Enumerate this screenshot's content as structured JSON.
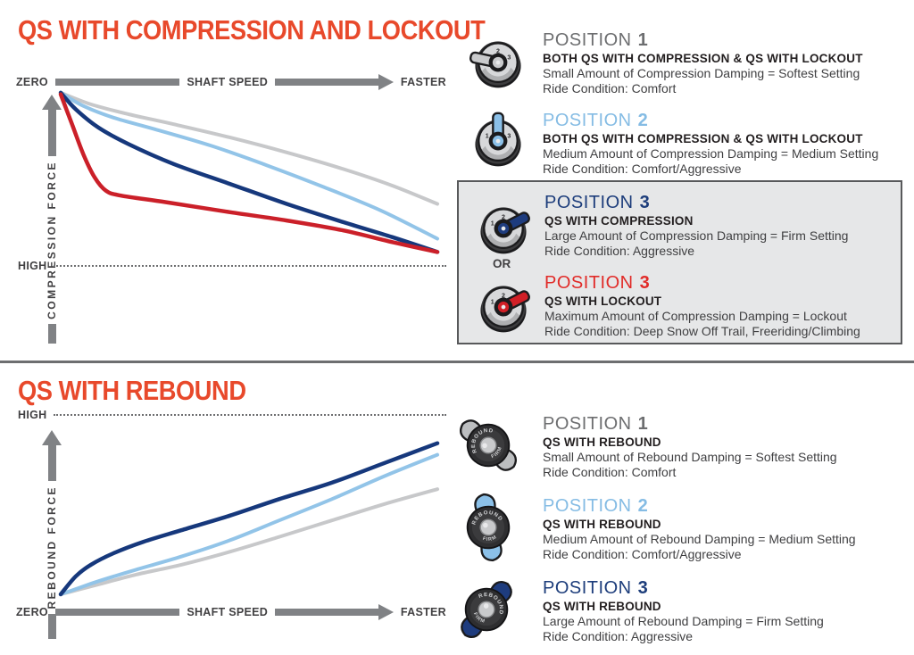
{
  "colors": {
    "title_orange": "#e8492b",
    "heading_gray": "#6d6e70",
    "heading_light_blue": "#85bce4",
    "heading_navy": "#1d3d7b",
    "heading_red": "#e12b28",
    "curve_gray": "#c7c8ca",
    "curve_light_blue": "#92c4e8",
    "curve_navy": "#16387c",
    "curve_red": "#cb2029",
    "lever_gray": "#c9cacc",
    "lever_light_blue": "#8bc0e8",
    "lever_navy": "#1e3c7e",
    "lever_red": "#d11f26",
    "wing_gray": "#bcbec0",
    "wing_light_blue": "#8bc0e8",
    "wing_navy": "#1e3c7e",
    "axis_gray": "#808285",
    "box_bg": "#e6e7e8",
    "box_border": "#58595b"
  },
  "top": {
    "title": "QS WITH COMPRESSION AND LOCKOUT",
    "axis": {
      "origin": "ZERO",
      "x_label": "SHAFT SPEED",
      "x_end": "FASTER",
      "y_label": "COMPRESSION FORCE",
      "y_end": "HIGH"
    },
    "or_label": "OR",
    "positions": [
      {
        "heading": "POSITION",
        "number": "1",
        "subtitle": "BOTH QS WITH COMPRESSION & QS WITH LOCKOUT",
        "desc": "Small Amount of Compression Damping = Softest Setting",
        "ride": "Ride Condition: Comfort"
      },
      {
        "heading": "POSITION",
        "number": "2",
        "subtitle": "BOTH QS WITH COMPRESSION & QS WITH LOCKOUT",
        "desc": "Medium Amount of Compression Damping = Medium Setting",
        "ride": "Ride Condition: Comfort/Aggressive"
      },
      {
        "heading": "POSITION",
        "number": "3",
        "subtitle": "QS WITH COMPRESSION",
        "desc": "Large Amount of Compression Damping = Firm Setting",
        "ride": "Ride Condition: Aggressive"
      },
      {
        "heading": "POSITION",
        "number": "3",
        "subtitle": "QS WITH LOCKOUT",
        "desc": "Maximum Amount of Compression Damping = Lockout",
        "ride": "Ride Condition: Deep Snow Off Trail, Freeriding/Climbing"
      }
    ]
  },
  "bottom": {
    "title": "QS WITH REBOUND",
    "axis": {
      "origin": "ZERO",
      "x_label": "SHAFT SPEED",
      "x_end": "FASTER",
      "y_label": "REBOUND FORCE",
      "y_top": "HIGH"
    },
    "positions": [
      {
        "heading": "POSITION",
        "number": "1",
        "subtitle": "QS WITH REBOUND",
        "desc": "Small Amount of Rebound Damping = Softest Setting",
        "ride": "Ride Condition: Comfort"
      },
      {
        "heading": "POSITION",
        "number": "2",
        "subtitle": "QS WITH REBOUND",
        "desc": "Medium Amount of Rebound Damping = Medium Setting",
        "ride": "Ride Condition: Comfort/Aggressive"
      },
      {
        "heading": "POSITION",
        "number": "3",
        "subtitle": "QS WITH REBOUND",
        "desc": "Large Amount of Rebound Damping = Firm Setting",
        "ride": "Ride Condition: Aggressive"
      }
    ]
  },
  "icons": {
    "dial_numbers": [
      "1",
      "2",
      "3"
    ],
    "knob_top_text": "REBOUND",
    "knob_bottom_text": "FIRM"
  },
  "chart_data": [
    {
      "type": "line",
      "title": "QS WITH COMPRESSION AND LOCKOUT",
      "xlabel": "SHAFT SPEED",
      "x_range_labels": [
        "ZERO",
        "FASTER"
      ],
      "ylabel": "COMPRESSION FORCE",
      "y_range_labels": [
        "ZERO",
        "HIGH"
      ],
      "force_direction_on_screen": "down",
      "grid": false,
      "legend": "none",
      "x_range": [
        0,
        100
      ],
      "force_range": [
        0,
        100
      ],
      "series": [
        {
          "name": "Position 1 - Both QS with Compression & QS with Lockout (Softest Setting)",
          "color": "#c7c8ca",
          "width": 4,
          "points": [
            [
              0,
              1
            ],
            [
              8,
              8
            ],
            [
              18,
              14
            ],
            [
              30,
              20
            ],
            [
              45,
              28
            ],
            [
              60,
              37
            ],
            [
              75,
              47
            ],
            [
              88,
              57
            ],
            [
              100,
              68
            ]
          ]
        },
        {
          "name": "Position 2 - Both QS with Compression & QS with Lockout (Medium Setting)",
          "color": "#92c4e8",
          "width": 4,
          "points": [
            [
              0,
              1
            ],
            [
              6,
              9
            ],
            [
              14,
              16
            ],
            [
              25,
              23
            ],
            [
              40,
              33
            ],
            [
              55,
              45
            ],
            [
              70,
              58
            ],
            [
              85,
              72
            ],
            [
              100,
              89
            ]
          ]
        },
        {
          "name": "Position 3 - QS with Compression (Firm Setting)",
          "color": "#16387c",
          "width": 4.5,
          "points": [
            [
              0,
              1
            ],
            [
              4,
              11
            ],
            [
              10,
              22
            ],
            [
              18,
              32
            ],
            [
              30,
              44
            ],
            [
              45,
              56
            ],
            [
              60,
              68
            ],
            [
              75,
              79
            ],
            [
              88,
              88
            ],
            [
              100,
              97
            ]
          ]
        },
        {
          "name": "Position 3 - QS with Lockout (Lockout)",
          "color": "#cb2029",
          "width": 4.5,
          "points": [
            [
              0,
              2
            ],
            [
              3,
              20
            ],
            [
              6,
              38
            ],
            [
              9,
              52
            ],
            [
              12,
              60
            ],
            [
              16,
              63
            ],
            [
              28,
              67
            ],
            [
              45,
              73
            ],
            [
              60,
              78
            ],
            [
              75,
              84
            ],
            [
              88,
              91
            ],
            [
              100,
              97
            ]
          ]
        }
      ]
    },
    {
      "type": "line",
      "title": "QS WITH REBOUND",
      "xlabel": "SHAFT SPEED",
      "x_range_labels": [
        "ZERO",
        "FASTER"
      ],
      "ylabel": "REBOUND FORCE",
      "y_range_labels": [
        "ZERO",
        "HIGH"
      ],
      "force_direction_on_screen": "up",
      "grid": false,
      "legend": "none",
      "x_range": [
        0,
        100
      ],
      "force_range": [
        0,
        100
      ],
      "series": [
        {
          "name": "Position 1 - QS with Rebound (Softest Setting)",
          "color": "#c7c8ca",
          "width": 4,
          "points": [
            [
              0,
              0
            ],
            [
              5,
              3
            ],
            [
              10,
              6
            ],
            [
              20,
              12
            ],
            [
              32,
              18
            ],
            [
              45,
              26
            ],
            [
              58,
              35
            ],
            [
              72,
              45
            ],
            [
              86,
              55
            ],
            [
              100,
              64
            ]
          ]
        },
        {
          "name": "Position 2 - QS with Rebound (Medium Setting)",
          "color": "#92c4e8",
          "width": 4,
          "points": [
            [
              0,
              0
            ],
            [
              5,
              4
            ],
            [
              10,
              8
            ],
            [
              20,
              15
            ],
            [
              32,
              23
            ],
            [
              45,
              33
            ],
            [
              58,
              45
            ],
            [
              72,
              58
            ],
            [
              86,
              72
            ],
            [
              100,
              85
            ]
          ]
        },
        {
          "name": "Position 3 - QS with Rebound (Firm Setting)",
          "color": "#16387c",
          "width": 4.5,
          "points": [
            [
              0,
              0
            ],
            [
              4,
              11
            ],
            [
              8,
              18
            ],
            [
              14,
              25
            ],
            [
              22,
              32
            ],
            [
              32,
              39
            ],
            [
              45,
              48
            ],
            [
              58,
              58
            ],
            [
              72,
              68
            ],
            [
              86,
              80
            ],
            [
              100,
              92
            ]
          ]
        }
      ]
    }
  ]
}
